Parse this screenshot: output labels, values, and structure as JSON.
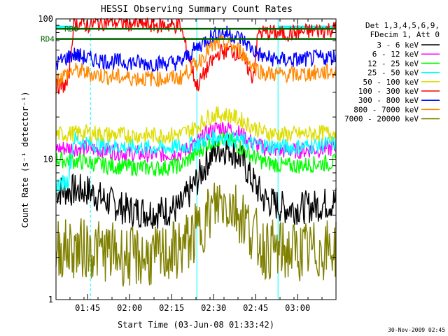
{
  "chart_data": {
    "type": "line",
    "title": "HESSI Observing Summary Count Rates",
    "xlabel": "Start Time (03-Jun-08 01:33:42)",
    "ylabel": "Count Rate (s⁻¹ detector⁻¹)",
    "yscale": "log",
    "ylim": [
      1,
      100
    ],
    "xlim": [
      "01:33:42",
      "03:13:42"
    ],
    "x_ticks": [
      "01:45",
      "02:00",
      "02:15",
      "02:30",
      "02:45",
      "03:00"
    ],
    "y_ticks": [
      "1",
      "10",
      "100"
    ],
    "grid": false,
    "legend_position": "right",
    "legend_header": [
      "Det 1,3,4,5,6,9,",
      "FDecim 1, Att 0"
    ],
    "series": [
      {
        "name": "3 - 6 keV",
        "color": "#000000",
        "points": [
          [
            "01:33:42",
            6
          ],
          [
            "01:45",
            6
          ],
          [
            "01:52",
            5
          ],
          [
            "02:00",
            4.3
          ],
          [
            "02:10",
            4.2
          ],
          [
            "02:18",
            4.5
          ],
          [
            "02:24",
            7
          ],
          [
            "02:28",
            10
          ],
          [
            "02:32",
            12
          ],
          [
            "02:36",
            12
          ],
          [
            "02:40",
            10
          ],
          [
            "02:44",
            7
          ],
          [
            "02:48",
            5.2
          ],
          [
            "02:55",
            4.5
          ],
          [
            "03:00",
            4.5
          ],
          [
            "03:05",
            4.6
          ],
          [
            "03:13:42",
            5
          ]
        ]
      },
      {
        "name": "6 - 12 keV",
        "color": "#ff00ff",
        "points": [
          [
            "01:33:42",
            12
          ],
          [
            "01:45",
            12
          ],
          [
            "01:52",
            11.5
          ],
          [
            "02:00",
            11
          ],
          [
            "02:10",
            10.8
          ],
          [
            "02:18",
            11
          ],
          [
            "02:24",
            13
          ],
          [
            "02:28",
            15.5
          ],
          [
            "02:32",
            17
          ],
          [
            "02:36",
            16.5
          ],
          [
            "02:40",
            15
          ],
          [
            "02:44",
            13
          ],
          [
            "02:48",
            12
          ],
          [
            "02:55",
            11.5
          ],
          [
            "03:00",
            11.5
          ],
          [
            "03:05",
            11.7
          ],
          [
            "03:13:42",
            12
          ]
        ]
      },
      {
        "name": "12 - 25 keV",
        "color": "#00ff00",
        "points": [
          [
            "01:33:42",
            10
          ],
          [
            "01:45",
            9.5
          ],
          [
            "01:52",
            9
          ],
          [
            "02:00",
            8.8
          ],
          [
            "02:10",
            8.6
          ],
          [
            "02:18",
            9
          ],
          [
            "02:24",
            11
          ],
          [
            "02:28",
            13
          ],
          [
            "02:32",
            14
          ],
          [
            "02:36",
            13.5
          ],
          [
            "02:40",
            12
          ],
          [
            "02:44",
            10.5
          ],
          [
            "02:48",
            9.5
          ],
          [
            "02:55",
            9
          ],
          [
            "03:00",
            9
          ],
          [
            "03:05",
            9.2
          ],
          [
            "03:13:42",
            9.5
          ]
        ]
      },
      {
        "name": "25 - 50 keV",
        "color": "#00ffff",
        "points": [
          [
            "01:33:42",
            6.5
          ],
          [
            "01:38",
            7
          ],
          [
            "01:40",
            14
          ],
          [
            "01:45",
            13
          ],
          [
            "01:52",
            12.5
          ],
          [
            "02:00",
            12.2
          ],
          [
            "02:10",
            12
          ],
          [
            "02:18",
            12.2
          ],
          [
            "02:24",
            13
          ],
          [
            "02:28",
            14
          ],
          [
            "02:32",
            14.5
          ],
          [
            "02:36",
            14
          ],
          [
            "02:40",
            13.5
          ],
          [
            "02:44",
            12.8
          ],
          [
            "02:48",
            12.5
          ],
          [
            "02:55",
            12.2
          ],
          [
            "03:00",
            12.2
          ],
          [
            "03:05",
            12.5
          ],
          [
            "03:13:42",
            13
          ]
        ]
      },
      {
        "name": "50 - 100 keV",
        "color": "#dddd00",
        "points": [
          [
            "01:33:42",
            15
          ],
          [
            "01:45",
            15.5
          ],
          [
            "01:52",
            15
          ],
          [
            "02:00",
            14.8
          ],
          [
            "02:10",
            14.8
          ],
          [
            "02:18",
            15
          ],
          [
            "02:24",
            17
          ],
          [
            "02:28",
            20
          ],
          [
            "02:32",
            21
          ],
          [
            "02:36",
            20.5
          ],
          [
            "02:40",
            19
          ],
          [
            "02:44",
            17
          ],
          [
            "02:48",
            15.5
          ],
          [
            "02:55",
            15
          ],
          [
            "03:00",
            15
          ],
          [
            "03:05",
            15.2
          ],
          [
            "03:13:42",
            15.5
          ]
        ]
      },
      {
        "name": "100 - 300 keV",
        "color": "#ff0000",
        "points": [
          [
            "01:33:42",
            33
          ],
          [
            "01:38",
            34
          ],
          [
            "01:40",
            95
          ],
          [
            "01:45",
            90
          ],
          [
            "01:52",
            96
          ],
          [
            "02:00",
            93
          ],
          [
            "02:10",
            90
          ],
          [
            "02:18",
            90
          ],
          [
            "02:24",
            33
          ],
          [
            "02:28",
            45
          ],
          [
            "02:32",
            58
          ],
          [
            "02:36",
            60
          ],
          [
            "02:40",
            55
          ],
          [
            "02:44",
            38
          ],
          [
            "02:46",
            80
          ],
          [
            "02:50",
            80
          ],
          [
            "02:55",
            78
          ],
          [
            "03:00",
            80
          ],
          [
            "03:05",
            82
          ],
          [
            "03:13:42",
            85
          ]
        ]
      },
      {
        "name": "300 - 800 keV",
        "color": "#0000ff",
        "points": [
          [
            "01:33:42",
            48
          ],
          [
            "01:40",
            56
          ],
          [
            "01:45",
            52
          ],
          [
            "01:52",
            50
          ],
          [
            "02:00",
            49
          ],
          [
            "02:10",
            48
          ],
          [
            "02:18",
            49
          ],
          [
            "02:24",
            62
          ],
          [
            "02:28",
            73
          ],
          [
            "02:32",
            80
          ],
          [
            "02:36",
            78
          ],
          [
            "02:40",
            72
          ],
          [
            "02:44",
            60
          ],
          [
            "02:48",
            53
          ],
          [
            "02:55",
            51
          ],
          [
            "03:00",
            51
          ],
          [
            "03:05",
            52
          ],
          [
            "03:13:42",
            54
          ]
        ]
      },
      {
        "name": "800 - 7000 keV",
        "color": "#ff8800",
        "points": [
          [
            "01:33:42",
            37
          ],
          [
            "01:40",
            43
          ],
          [
            "01:45",
            41
          ],
          [
            "01:52",
            39
          ],
          [
            "02:00",
            38
          ],
          [
            "02:10",
            37.5
          ],
          [
            "02:18",
            38
          ],
          [
            "02:24",
            48
          ],
          [
            "02:28",
            60
          ],
          [
            "02:32",
            67
          ],
          [
            "02:36",
            65
          ],
          [
            "02:40",
            58
          ],
          [
            "02:44",
            46
          ],
          [
            "02:48",
            41
          ],
          [
            "02:55",
            40
          ],
          [
            "03:00",
            40
          ],
          [
            "03:05",
            41
          ],
          [
            "03:13:42",
            42
          ]
        ]
      },
      {
        "name": "7000 - 20000 keV",
        "color": "#808000",
        "points": [
          [
            "01:33:42",
            2.3
          ],
          [
            "01:45",
            2.3
          ],
          [
            "01:52",
            2.2
          ],
          [
            "02:00",
            2
          ],
          [
            "02:10",
            2
          ],
          [
            "02:18",
            2.3
          ],
          [
            "02:24",
            3
          ],
          [
            "02:28",
            4
          ],
          [
            "02:32",
            5
          ],
          [
            "02:36",
            4.8
          ],
          [
            "02:40",
            4
          ],
          [
            "02:44",
            3
          ],
          [
            "02:48",
            2.3
          ],
          [
            "02:55",
            2.2
          ],
          [
            "03:00",
            2.2
          ],
          [
            "03:05",
            2.2
          ],
          [
            "03:13:42",
            2.3
          ]
        ]
      }
    ],
    "annotations": [
      {
        "text": "RD0",
        "value": 85,
        "color": "#006400"
      },
      {
        "text": "RD4",
        "value": 72,
        "color": "#006400"
      }
    ],
    "night_markers": {
      "color": "#00ffff",
      "solid_lines": [
        "01:33:42",
        "02:24",
        "02:53"
      ],
      "dashed_lines": [
        "01:46",
        "03:13:42"
      ],
      "high_bar_segments": [
        [
          "01:33:42",
          "01:40"
        ],
        [
          "02:53",
          "03:13:42"
        ]
      ],
      "high_bar_value": 88
    },
    "footer": "30-Nov-2009 02:45"
  }
}
